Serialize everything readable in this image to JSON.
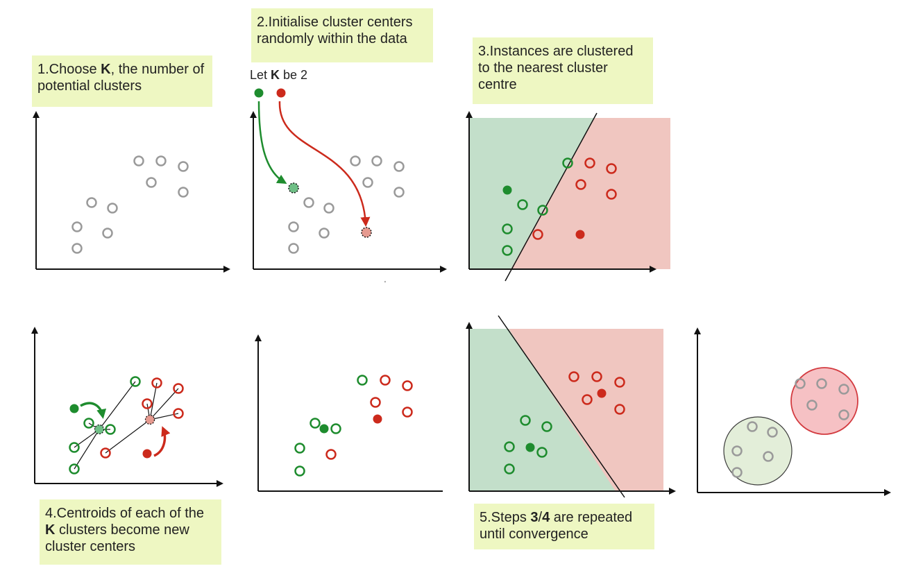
{
  "colors": {
    "green": "#1e8c2e",
    "red": "#cc2a1c",
    "grey": "#9a9a9a",
    "callout_bg": "#eef7c2",
    "green_region": "#c3dfca",
    "red_region": "#f0c6c0",
    "green_cluster_fill": "#e3eed9",
    "red_cluster_fill": "#f6c1c4"
  },
  "steps": {
    "step1": {
      "pre": "1.Choose ",
      "bold": "K",
      "post": ", the number of potential clusters"
    },
    "step2": {
      "text": "2.Initialise cluster centers randomly within the data"
    },
    "step3": {
      "text": "3.Instances are clustered to the nearest cluster centre"
    },
    "step4": {
      "pre": "4.Centroids of each of the ",
      "bold": "K",
      "post": " clusters become new cluster centers"
    },
    "step5": {
      "pre": "5.Steps ",
      "bold1": "3",
      "mid": "/",
      "bold2": "4",
      "post": " are repeated until convergence"
    }
  },
  "let_k": {
    "pre": "Let ",
    "bold": "K",
    "post": " be 2"
  }
}
